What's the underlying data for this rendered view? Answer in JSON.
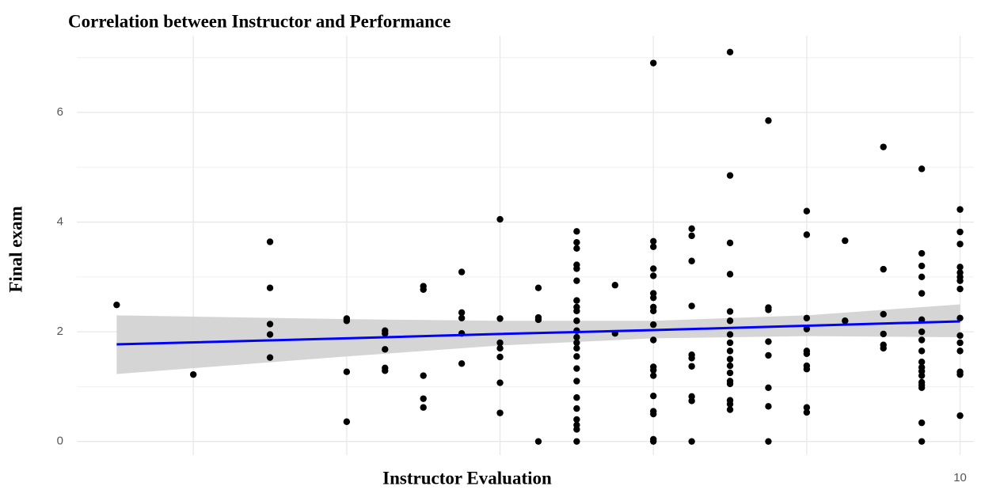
{
  "chart_data": {
    "type": "scatter",
    "title": "Correlation between Instructor and Performance",
    "xlabel": "Instructor Evaluation",
    "ylabel": "Final exam",
    "xlim": [
      4.24,
      10.09
    ],
    "ylim": [
      -0.25,
      7.4
    ],
    "xticks": [
      10
    ],
    "xgrid": [
      5,
      6,
      7,
      8,
      9,
      10
    ],
    "yticks": [
      0,
      2,
      4,
      6
    ],
    "ygrid_minor": [
      1,
      3,
      5,
      7
    ],
    "grid": true,
    "color": "#000000",
    "x": [
      4.5,
      5,
      5.5,
      5.5,
      5.5,
      5.5,
      5.5,
      6,
      6,
      6,
      6,
      6.25,
      6.25,
      6.25,
      6.25,
      6.25,
      6.5,
      6.5,
      6.5,
      6.5,
      6.5,
      6.75,
      6.75,
      6.75,
      6.75,
      6.75,
      7,
      7,
      7,
      7,
      7,
      7,
      7,
      7.25,
      7.25,
      7.25,
      7.25,
      7.5,
      7.5,
      7.5,
      7.5,
      7.5,
      7.5,
      7.5,
      7.5,
      7.5,
      7.5,
      7.5,
      7.5,
      7.5,
      7.5,
      7.5,
      7.5,
      7.5,
      7.5,
      7.5,
      7.5,
      7.5,
      7.5,
      7.5,
      7.75,
      7.75,
      8,
      8,
      8,
      8,
      8,
      8,
      8,
      8,
      8,
      8,
      8,
      8,
      8,
      8,
      8,
      8,
      8,
      8,
      8,
      8.25,
      8.25,
      8.25,
      8.25,
      8.25,
      8.25,
      8.25,
      8.25,
      8.25,
      8.25,
      8.5,
      8.5,
      8.5,
      8.5,
      8.5,
      8.5,
      8.5,
      8.5,
      8.5,
      8.5,
      8.5,
      8.5,
      8.5,
      8.5,
      8.5,
      8.5,
      8.5,
      8.75,
      8.75,
      8.75,
      8.75,
      8.75,
      8.75,
      8.75,
      8.75,
      9,
      9,
      9,
      9,
      9,
      9,
      9,
      9,
      9,
      9,
      9.25,
      9.25,
      9.5,
      9.5,
      9.5,
      9.5,
      9.5,
      9.5,
      9.75,
      9.75,
      9.75,
      9.75,
      9.75,
      9.75,
      9.75,
      9.75,
      9.75,
      9.75,
      9.75,
      9.75,
      9.75,
      9.75,
      9.75,
      9.75,
      9.75,
      9.75,
      10,
      10,
      10,
      10,
      10,
      10,
      10,
      10,
      10,
      10,
      10,
      10,
      10,
      10,
      10
    ],
    "y": [
      2.49,
      1.22,
      3.64,
      2.8,
      2.14,
      1.95,
      1.53,
      2.24,
      2.2,
      1.27,
      0.36,
      2.02,
      1.97,
      1.68,
      1.34,
      1.29,
      2.83,
      2.77,
      1.2,
      0.78,
      0.62,
      3.09,
      2.35,
      2.25,
      1.97,
      1.42,
      4.05,
      2.24,
      1.8,
      1.7,
      1.54,
      1.07,
      0.52,
      2.8,
      2.26,
      2.22,
      0,
      3.83,
      3.63,
      3.52,
      3.22,
      3.15,
      2.93,
      2.57,
      2.45,
      2.38,
      2.2,
      2.02,
      1.9,
      1.8,
      1.7,
      1.55,
      1.33,
      1.1,
      0.8,
      0.6,
      0.4,
      0.3,
      0.22,
      0,
      2.85,
      1.97,
      6.9,
      3.65,
      3.55,
      3.15,
      3.02,
      2.7,
      2.62,
      2.45,
      2.38,
      2.13,
      1.85,
      1.36,
      1.3,
      1.2,
      0.83,
      0.55,
      0.5,
      0.04,
      0,
      3.88,
      3.75,
      3.29,
      2.47,
      1.58,
      1.52,
      1.37,
      0.82,
      0.74,
      0,
      7.1,
      4.85,
      3.62,
      3.05,
      2.37,
      2.2,
      1.95,
      1.8,
      1.65,
      1.5,
      1.38,
      1.25,
      1.1,
      1.05,
      0.75,
      0.68,
      0.58,
      5.85,
      2.44,
      2.4,
      1.82,
      1.57,
      0.98,
      0.64,
      0,
      4.2,
      3.77,
      2.25,
      2.05,
      1.65,
      1.6,
      1.38,
      1.32,
      0.62,
      0.53,
      3.66,
      2.2,
      5.37,
      3.14,
      2.32,
      1.96,
      1.76,
      1.7,
      4.97,
      3.43,
      3.2,
      3.0,
      2.7,
      2.22,
      2.0,
      1.85,
      1.65,
      1.45,
      1.35,
      1.28,
      1.2,
      1.08,
      1.03,
      0.98,
      0.34,
      0,
      4.23,
      3.82,
      3.6,
      3.18,
      3.08,
      3.0,
      2.93,
      2.78,
      2.25,
      1.93,
      1.8,
      1.65,
      1.27,
      1.22,
      0.47
    ],
    "smooth": {
      "color": "#0000ff",
      "band_color": "#d3d3d3",
      "x": [
        4.5,
        6,
        7,
        8,
        9,
        10
      ],
      "y": [
        1.77,
        1.88,
        1.96,
        2.03,
        2.11,
        2.19
      ],
      "lower": [
        1.23,
        1.55,
        1.75,
        1.88,
        1.92,
        1.9
      ],
      "upper": [
        2.3,
        2.23,
        2.2,
        2.2,
        2.3,
        2.5
      ]
    }
  }
}
